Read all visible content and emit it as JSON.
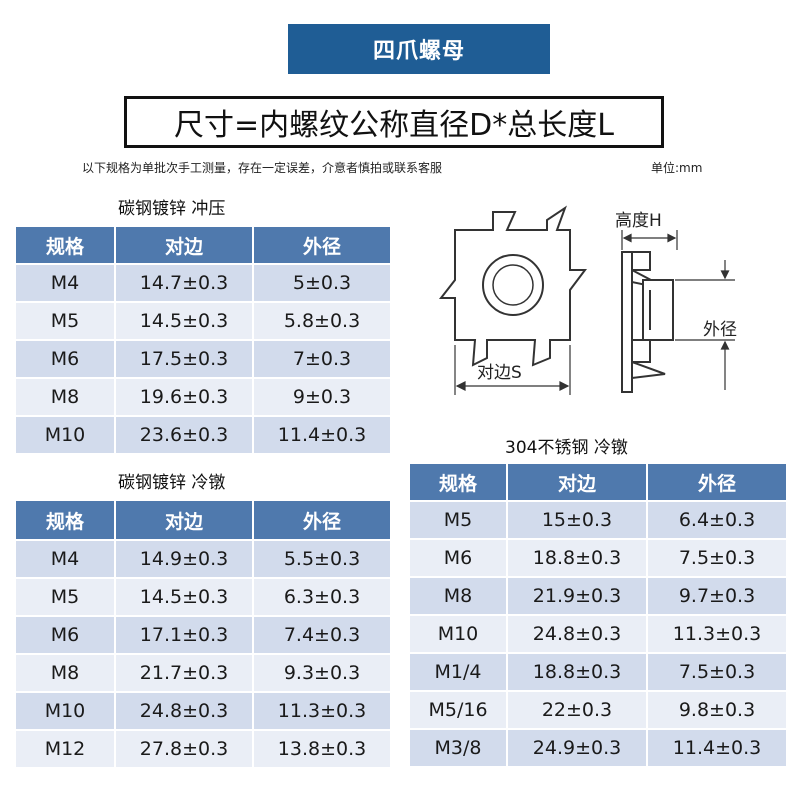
{
  "title": "四爪螺母",
  "formula": "尺寸=内螺纹公称直径D*总长度L",
  "note": "以下规格为单批次手工测量，存在一定误差，介意者慎拍或联系客服",
  "unit": "单位:mm",
  "diagram": {
    "height_label": "高度H",
    "outer_label": "外径",
    "flat_label": "对边S"
  },
  "tables": {
    "stamp": {
      "caption": "碳钢镀锌 冲压",
      "headers": [
        "规格",
        "对边",
        "外径"
      ],
      "rows": [
        [
          "M4",
          "14.7±0.3",
          "5±0.3"
        ],
        [
          "M5",
          "14.5±0.3",
          "5.8±0.3"
        ],
        [
          "M6",
          "17.5±0.3",
          "7±0.3"
        ],
        [
          "M8",
          "19.6±0.3",
          "9±0.3"
        ],
        [
          "M10",
          "23.6±0.3",
          "11.4±0.3"
        ]
      ]
    },
    "cold": {
      "caption": "碳钢镀锌 冷镦",
      "headers": [
        "规格",
        "对边",
        "外径"
      ],
      "rows": [
        [
          "M4",
          "14.9±0.3",
          "5.5±0.3"
        ],
        [
          "M5",
          "14.5±0.3",
          "6.3±0.3"
        ],
        [
          "M6",
          "17.1±0.3",
          "7.4±0.3"
        ],
        [
          "M8",
          "21.7±0.3",
          "9.3±0.3"
        ],
        [
          "M10",
          "24.8±0.3",
          "11.3±0.3"
        ],
        [
          "M12",
          "27.8±0.3",
          "13.8±0.3"
        ]
      ]
    },
    "stainless": {
      "caption": "304不锈钢 冷镦",
      "headers": [
        "规格",
        "对边",
        "外径"
      ],
      "rows": [
        [
          "M5",
          "15±0.3",
          "6.4±0.3"
        ],
        [
          "M6",
          "18.8±0.3",
          "7.5±0.3"
        ],
        [
          "M8",
          "21.9±0.3",
          "9.7±0.3"
        ],
        [
          "M10",
          "24.8±0.3",
          "11.3±0.3"
        ],
        [
          "M1/4",
          "18.8±0.3",
          "7.5±0.3"
        ],
        [
          "M5/16",
          "22±0.3",
          "9.8±0.3"
        ],
        [
          "M3/8",
          "24.9±0.3",
          "11.4±0.3"
        ]
      ]
    }
  }
}
